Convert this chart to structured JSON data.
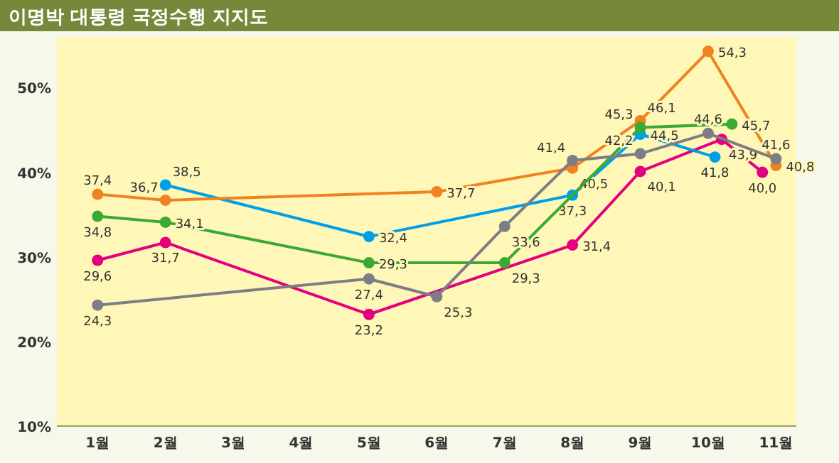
{
  "chart_data": {
    "type": "line",
    "title": "이명박 대통령 국정수행 지지도",
    "xlim": [
      0.4,
      11.3
    ],
    "ylim": [
      10,
      56
    ],
    "xticks": [
      {
        "value": 1,
        "label": "1월"
      },
      {
        "value": 2,
        "label": "2월"
      },
      {
        "value": 3,
        "label": "3월"
      },
      {
        "value": 4,
        "label": "4월"
      },
      {
        "value": 5,
        "label": "5월"
      },
      {
        "value": 6,
        "label": "6월"
      },
      {
        "value": 7,
        "label": "7월"
      },
      {
        "value": 8,
        "label": "8월"
      },
      {
        "value": 9,
        "label": "9월"
      },
      {
        "value": 10,
        "label": "10월"
      },
      {
        "value": 11,
        "label": "11월"
      }
    ],
    "yticks": [
      {
        "value": 10,
        "label": "10%"
      },
      {
        "value": 20,
        "label": "20%"
      },
      {
        "value": 30,
        "label": "30%"
      },
      {
        "value": 40,
        "label": "40%"
      },
      {
        "value": 50,
        "label": "50%"
      }
    ],
    "marker": "circle",
    "series": [
      {
        "color": "#e5007e",
        "x": [
          1,
          2,
          5,
          8,
          9,
          10.2,
          10.8
        ],
        "values": [
          29.6,
          31.7,
          23.2,
          31.4,
          40.1,
          43.9,
          40.0
        ],
        "value_labels": [
          "29,6",
          "31,7",
          "23,2",
          "31,4",
          "40,1",
          "43,9",
          "40,0"
        ]
      },
      {
        "color": "#00a0e9",
        "x": [
          2,
          5,
          8,
          9,
          10.1
        ],
        "values": [
          38.5,
          32.4,
          37.3,
          44.5,
          41.8
        ],
        "value_labels": [
          "38,5",
          "32,4",
          "37,3",
          "44,5",
          "41,8"
        ]
      },
      {
        "color": "#f08321",
        "x": [
          1,
          2,
          6,
          8,
          9,
          10,
          11
        ],
        "values": [
          37.4,
          36.7,
          37.7,
          40.5,
          46.1,
          54.3,
          40.8
        ],
        "value_labels": [
          "37,4",
          "36,7",
          "37,7",
          "40,5",
          "46,1",
          "54,3",
          "40,8"
        ]
      },
      {
        "color": "#3aaa35",
        "x": [
          1,
          2,
          5,
          7,
          9,
          10.35
        ],
        "values": [
          34.8,
          34.1,
          29.3,
          29.3,
          45.3,
          45.7
        ],
        "value_labels": [
          "34,8",
          "34,1",
          "29,3",
          "29,3",
          "45,3",
          "45,7"
        ]
      },
      {
        "color": "#7d7d85",
        "x": [
          1,
          5,
          6,
          7,
          8,
          9,
          10,
          11
        ],
        "values": [
          24.3,
          27.4,
          25.3,
          33.6,
          41.4,
          42.2,
          44.6,
          41.6
        ],
        "value_labels": [
          "24,3",
          "27,4",
          "25,3",
          "33,6",
          "41,4",
          "42,2",
          "44,6",
          "41,6"
        ]
      }
    ]
  }
}
